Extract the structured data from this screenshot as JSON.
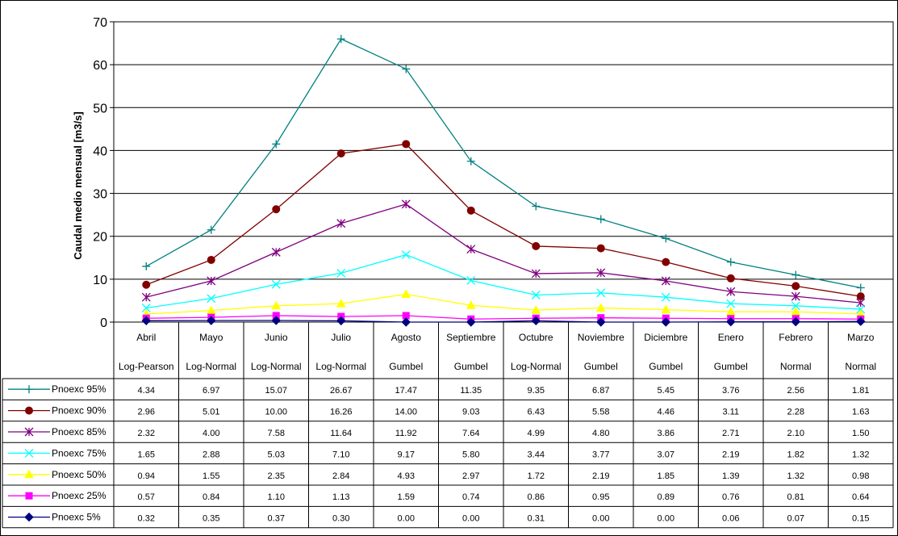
{
  "chart_data": {
    "type": "line",
    "ylabel": "Caudal medio mensual  [m3/s]",
    "xlabel": "",
    "ylim": [
      0,
      70
    ],
    "yticks": [
      0,
      10,
      20,
      30,
      40,
      50,
      60,
      70
    ],
    "grid": true,
    "categories": [
      "Abril",
      "Mayo",
      "Junio",
      "Julio",
      "Agosto",
      "Septiembre",
      "Octubre",
      "Noviembre",
      "Diciembre",
      "Enero",
      "Febrero",
      "Marzo"
    ],
    "distributions": [
      "Log-Pearson",
      "Log-Normal",
      "Log-Normal",
      "Log-Normal",
      "Gumbel",
      "Gumbel",
      "Log-Normal",
      "Gumbel",
      "Gumbel",
      "Gumbel",
      "Normal",
      "Normal"
    ],
    "series": [
      {
        "name": "Pnoexc 95%",
        "color": "#008080",
        "marker": "plus",
        "plot": [
          13.0,
          21.5,
          41.5,
          66.0,
          59.0,
          37.5,
          27.0,
          24.0,
          19.5,
          14.0,
          11.0,
          8.0
        ],
        "table": [
          "4.34",
          "6.97",
          "15.07",
          "26.67",
          "17.47",
          "11.35",
          "9.35",
          "6.87",
          "5.45",
          "3.76",
          "2.56",
          "1.81"
        ]
      },
      {
        "name": "Pnoexc 90%",
        "color": "#800000",
        "marker": "circle",
        "plot": [
          8.7,
          14.5,
          26.3,
          39.3,
          41.5,
          26.0,
          17.7,
          17.2,
          14.0,
          10.2,
          8.4,
          6.0
        ],
        "table": [
          "2.96",
          "5.01",
          "10.00",
          "16.26",
          "14.00",
          "9.03",
          "6.43",
          "5.58",
          "4.46",
          "3.11",
          "2.28",
          "1.63"
        ]
      },
      {
        "name": "Pnoexc 85%",
        "color": "#800080",
        "marker": "star",
        "plot": [
          5.8,
          9.6,
          16.3,
          23.0,
          27.5,
          17.0,
          11.3,
          11.5,
          9.6,
          7.1,
          6.0,
          4.5
        ],
        "table": [
          "2.32",
          "4.00",
          "7.58",
          "11.64",
          "11.92",
          "7.64",
          "4.99",
          "4.80",
          "3.86",
          "2.71",
          "2.10",
          "1.50"
        ]
      },
      {
        "name": "Pnoexc 75%",
        "color": "#00ffff",
        "marker": "x",
        "plot": [
          3.3,
          5.5,
          8.8,
          11.4,
          15.7,
          9.7,
          6.3,
          6.8,
          5.8,
          4.3,
          3.8,
          3.0
        ],
        "table": [
          "1.65",
          "2.88",
          "5.03",
          "7.10",
          "9.17",
          "5.80",
          "3.44",
          "3.77",
          "3.07",
          "2.19",
          "1.82",
          "1.32"
        ]
      },
      {
        "name": "Pnoexc 50%",
        "color": "#ffff00",
        "marker": "triangle",
        "plot": [
          1.9,
          2.7,
          3.8,
          4.3,
          6.5,
          3.9,
          2.8,
          3.3,
          2.9,
          2.4,
          2.4,
          1.9
        ],
        "table": [
          "0.94",
          "1.55",
          "2.35",
          "2.84",
          "4.93",
          "2.97",
          "1.72",
          "2.19",
          "1.85",
          "1.39",
          "1.32",
          "0.98"
        ]
      },
      {
        "name": "Pnoexc 25%",
        "color": "#ff00ff",
        "marker": "square",
        "plot": [
          0.9,
          1.1,
          1.5,
          1.3,
          1.5,
          0.7,
          0.9,
          1.0,
          0.9,
          0.8,
          0.8,
          0.7
        ],
        "table": [
          "0.57",
          "0.84",
          "1.10",
          "1.13",
          "1.59",
          "0.74",
          "0.86",
          "0.95",
          "0.89",
          "0.76",
          "0.81",
          "0.64"
        ]
      },
      {
        "name": "Pnoexc 5%",
        "color": "#000080",
        "marker": "diamond",
        "plot": [
          0.32,
          0.35,
          0.37,
          0.3,
          0.0,
          0.0,
          0.31,
          0.0,
          0.0,
          0.06,
          0.07,
          0.15
        ],
        "table": [
          "0.32",
          "0.35",
          "0.37",
          "0.30",
          "0.00",
          "0.00",
          "0.31",
          "0.00",
          "0.00",
          "0.06",
          "0.07",
          "0.15"
        ]
      }
    ]
  }
}
